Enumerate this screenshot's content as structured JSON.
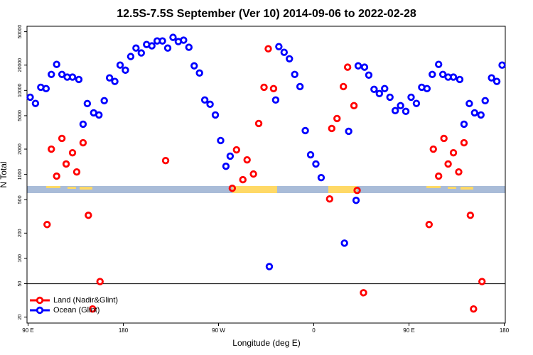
{
  "chart_data": {
    "type": "scatter",
    "title": "12.5S-7.5S September (Ver 10)   2014-09-06 to 2022-02-28",
    "x_label": "Longitude (deg E)",
    "y_label": "N Total",
    "log_y": true,
    "xlim": [
      89,
      541
    ],
    "ylim": [
      17,
      58000
    ],
    "xticks": [
      {
        "value": 90,
        "label": "90 E"
      },
      {
        "value": 180,
        "label": "180"
      },
      {
        "value": 270,
        "label": "90 W"
      },
      {
        "value": 360,
        "label": "0"
      },
      {
        "value": 450,
        "label": "90 E"
      },
      {
        "value": 540,
        "label": "180"
      }
    ],
    "yticks": [
      20,
      50,
      100,
      200,
      500,
      1000,
      2000,
      5000,
      10000,
      20000,
      50000
    ],
    "reference_line": 50,
    "legend_position": "lower left",
    "series": [
      {
        "name": "Land (Nadir&Glint)",
        "color": "#ff0000",
        "x": [
          108,
          112,
          117,
          122,
          126,
          132,
          136,
          142,
          147,
          151,
          158,
          220,
          283,
          287,
          293,
          297,
          303,
          308,
          313,
          317,
          322,
          375,
          377,
          382,
          388,
          392,
          398,
          401,
          407,
          469,
          473,
          478,
          483,
          487,
          492,
          497,
          502,
          508,
          511,
          519
        ],
        "values": [
          253,
          2000,
          953,
          2680,
          1330,
          1810,
          1070,
          2380,
          326,
          25,
          53,
          1460,
          684,
          1960,
          865,
          1490,
          1010,
          4040,
          10900,
          31300,
          10500,
          510,
          3520,
          4630,
          11100,
          18900,
          6580,
          645,
          39,
          253,
          2000,
          953,
          2680,
          1330,
          1810,
          1070,
          2380,
          326,
          25,
          53
        ]
      },
      {
        "name": "Ocean (Glint)",
        "color": "#0000ff",
        "x": [
          92,
          97,
          102,
          107,
          112,
          117,
          122,
          127,
          132,
          138,
          142,
          146,
          152,
          157,
          162,
          167,
          172,
          177,
          182,
          187,
          192,
          197,
          202,
          207,
          212,
          217,
          222,
          227,
          232,
          237,
          242,
          247,
          252,
          257,
          262,
          267,
          272,
          277,
          281,
          318,
          324,
          327,
          332,
          337,
          342,
          347,
          352,
          357,
          362,
          367,
          389,
          393,
          400,
          402,
          408,
          412,
          417,
          422,
          427,
          432,
          437,
          442,
          447,
          452,
          457,
          462,
          467,
          472,
          478,
          482,
          487,
          492,
          498,
          502,
          507,
          512,
          518,
          522,
          528,
          533,
          538
        ],
        "values": [
          8300,
          7000,
          10900,
          10500,
          15500,
          20400,
          15500,
          14400,
          14400,
          13500,
          3960,
          6970,
          5410,
          5100,
          7540,
          14100,
          12800,
          20000,
          17400,
          25300,
          31900,
          27900,
          35200,
          33900,
          38800,
          38800,
          31900,
          42800,
          38100,
          39600,
          32600,
          19600,
          16100,
          7690,
          6840,
          5100,
          2530,
          1250,
          1650,
          80,
          7690,
          33200,
          28400,
          23800,
          15500,
          11100,
          3320,
          1710,
          1330,
          916,
          152,
          3260,
          491,
          19600,
          18900,
          15200,
          10300,
          9160,
          10500,
          8300,
          5740,
          6580,
          5630,
          8300,
          7000,
          10900,
          10500,
          15500,
          20400,
          15500,
          14400,
          14400,
          13500,
          3960,
          6970,
          5410,
          5100,
          7540,
          14100,
          12800,
          20000
        ]
      }
    ]
  }
}
